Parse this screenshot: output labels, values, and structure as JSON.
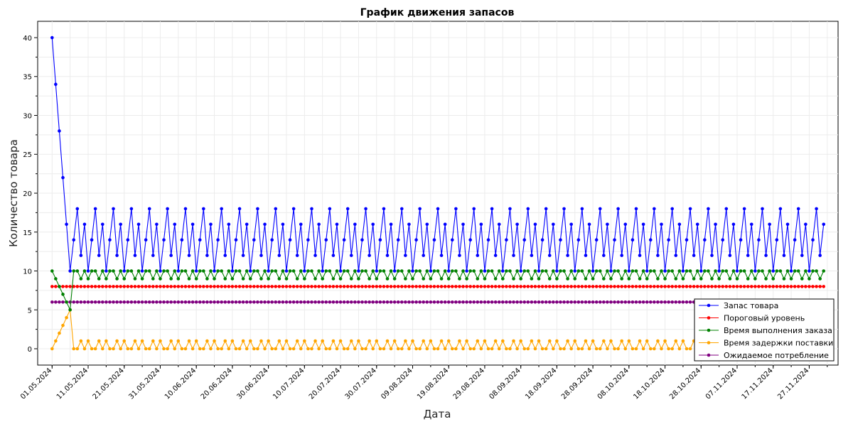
{
  "chart_data": {
    "type": "line",
    "title": "График движения запасов",
    "xlabel": "Дата",
    "ylabel": "Количество товара",
    "x_start_date": "2024-05-01",
    "x_end_date": "2024-12-01",
    "xlim": [
      "2024-04-27",
      "2024-12-05"
    ],
    "ylim": [
      -2.1,
      42.1
    ],
    "y_ticks": [
      0,
      5,
      10,
      15,
      20,
      25,
      30,
      35,
      40
    ],
    "x_tick_labels": [
      "01.05.2024",
      "11.05.2024",
      "21.05.2024",
      "31.05.2024",
      "10.06.2024",
      "20.06.2024",
      "30.06.2024",
      "10.07.2024",
      "20.07.2024",
      "30.07.2024",
      "09.08.2024",
      "19.08.2024",
      "29.08.2024",
      "08.09.2024",
      "18.09.2024",
      "28.09.2024",
      "08.10.2024",
      "18.10.2024",
      "28.10.2024",
      "07.11.2024",
      "17.11.2024",
      "27.11.2024"
    ],
    "grid": true,
    "legend_position": "bottom-right",
    "series": [
      {
        "name": "Запас товара",
        "color": "#0000ff",
        "start_values": [
          40,
          34,
          28,
          22,
          16,
          10
        ],
        "repeating_pattern": [
          14,
          18,
          12,
          16,
          10
        ]
      },
      {
        "name": "Пороговый уровень",
        "color": "#ff0000",
        "constant_value": 8
      },
      {
        "name": "Время выполнения заказа",
        "color": "#008000",
        "start_values": [
          10,
          9,
          8,
          7,
          6,
          5
        ],
        "repeating_pattern": [
          10,
          10,
          9,
          10,
          9
        ]
      },
      {
        "name": "Время задержки поставки",
        "color": "#ffa500",
        "start_values": [
          0,
          1,
          2,
          3,
          4,
          5
        ],
        "repeating_pattern": [
          0,
          0,
          1,
          0,
          1
        ]
      },
      {
        "name": "Ожидаемое потребление",
        "color": "#800080",
        "constant_value": 6
      }
    ]
  }
}
